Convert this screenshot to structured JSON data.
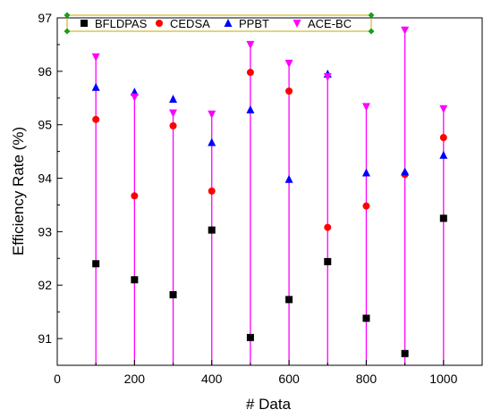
{
  "chart_data": {
    "type": "scatter",
    "title": "",
    "xlabel": "# Data",
    "ylabel": "Efficiency Rate (%)",
    "xlim": [
      0,
      1100
    ],
    "ylim": [
      90.5,
      97
    ],
    "x_ticks": [
      0,
      200,
      400,
      600,
      800,
      1000
    ],
    "y_ticks": [
      91,
      92,
      93,
      94,
      95,
      96,
      97
    ],
    "grid": false,
    "legend_position": "top",
    "x": [
      100,
      200,
      300,
      400,
      500,
      600,
      700,
      800,
      900,
      1000
    ],
    "series": [
      {
        "name": "BFLDPAS",
        "marker": "square",
        "color": "#000000",
        "values": [
          92.4,
          92.1,
          91.82,
          93.03,
          91.02,
          91.73,
          92.44,
          91.38,
          90.72,
          93.25
        ]
      },
      {
        "name": "CEDSA",
        "marker": "circle",
        "color": "#ff0000",
        "values": [
          95.1,
          93.67,
          94.98,
          93.76,
          95.98,
          95.63,
          93.08,
          93.48,
          94.07,
          94.76
        ]
      },
      {
        "name": "PPBT",
        "marker": "triangle-up",
        "color": "#0000ff",
        "values": [
          95.7,
          95.61,
          95.48,
          94.67,
          95.28,
          93.98,
          95.95,
          94.1,
          94.12,
          94.43
        ]
      },
      {
        "name": "ACE-BC",
        "marker": "triangle-down",
        "color": "#ff00ff",
        "values": [
          96.27,
          95.52,
          95.22,
          95.2,
          96.5,
          96.15,
          95.9,
          95.34,
          96.77,
          95.3
        ]
      }
    ],
    "drop_lines": {
      "series": "ACE-BC",
      "color": "#ff00ff",
      "to": 90.5
    }
  }
}
